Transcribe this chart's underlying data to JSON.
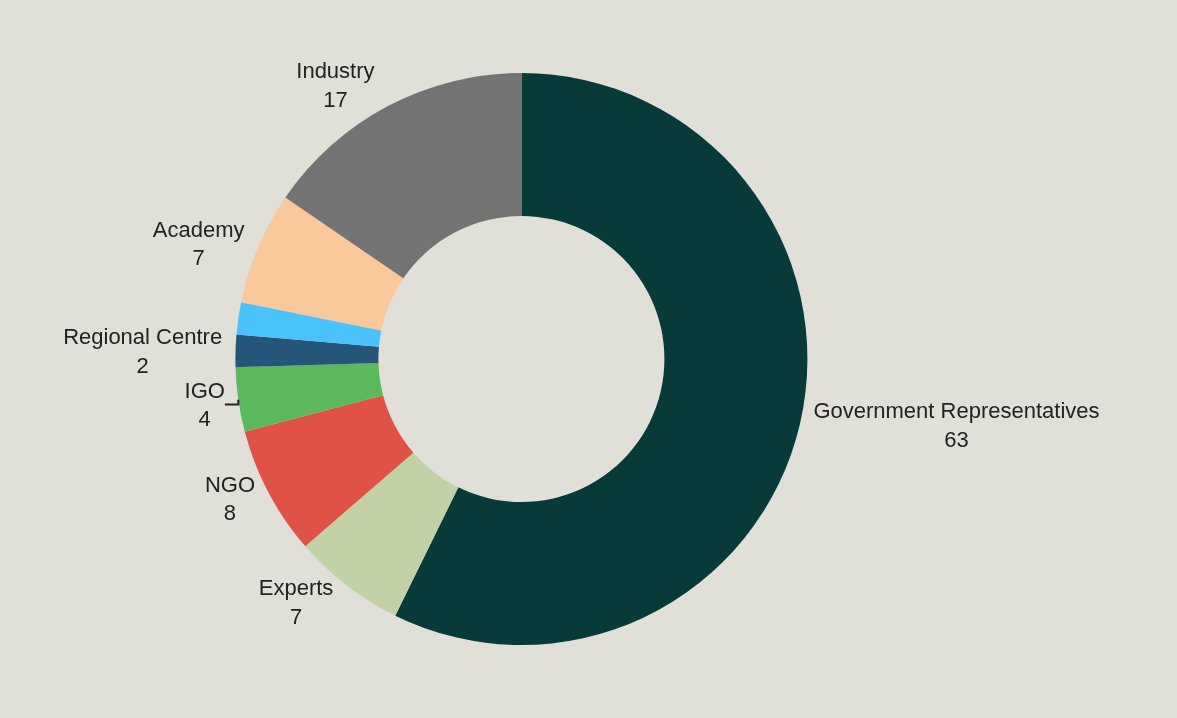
{
  "chart_data": {
    "type": "donut",
    "categories": [
      "Government Representatives",
      "Experts",
      "NGO",
      "IGO",
      "Regional Centre",
      null,
      "Academy",
      "Industry"
    ],
    "values": [
      63,
      7,
      8,
      4,
      2,
      2,
      7,
      17
    ],
    "colors": [
      "#073b3a",
      "#c2d1a6",
      "#e05247",
      "#5cb85c",
      "#26557a",
      "#4ac3fd",
      "#f9c99b",
      "#737373"
    ],
    "value_labels": [
      "63",
      "7",
      "8",
      "4",
      "2",
      null,
      "7",
      "17"
    ],
    "legend": false
  }
}
